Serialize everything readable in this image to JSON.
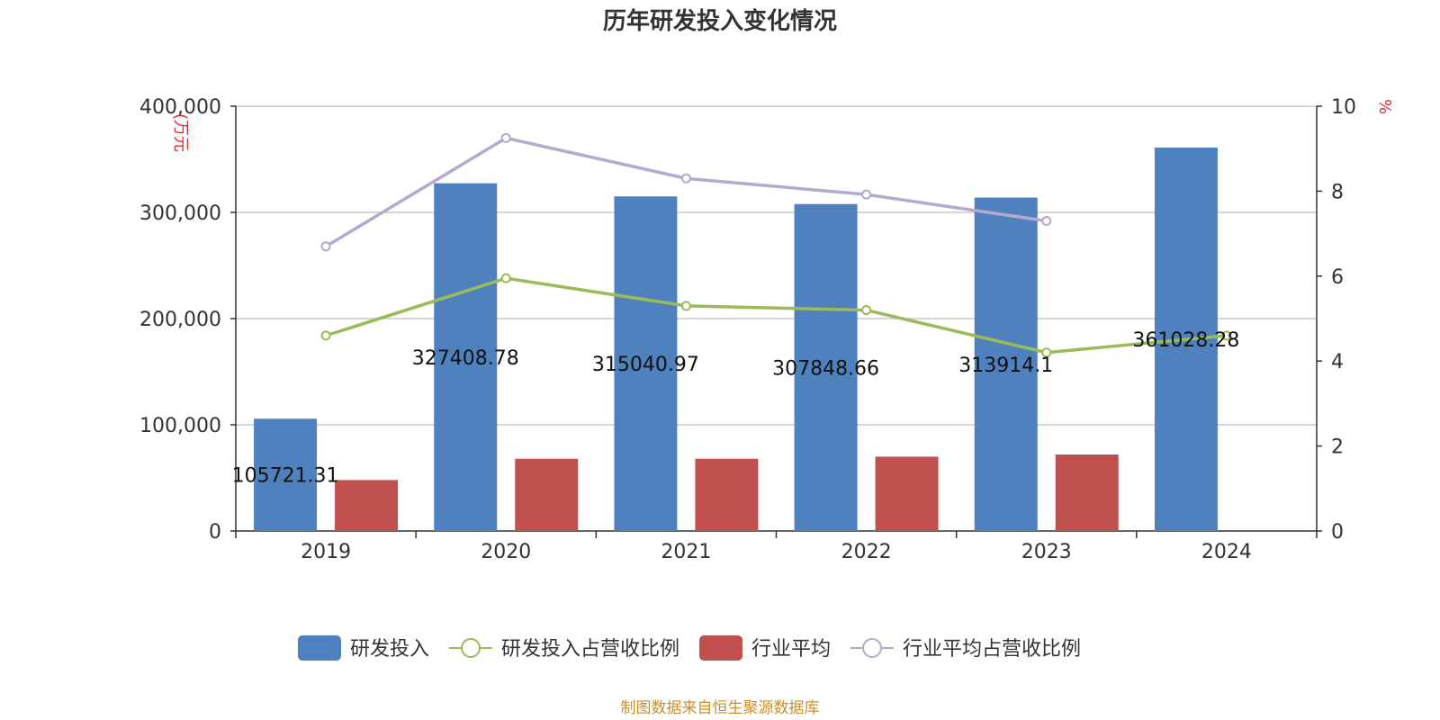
{
  "chart_data": {
    "type": "bar",
    "title": "历年研发投入变化情况",
    "categories": [
      "2019",
      "2020",
      "2021",
      "2022",
      "2023",
      "2024"
    ],
    "y_left": {
      "unit": "(万元",
      "ylim": [
        0,
        400000
      ],
      "ticks": [
        "0",
        "100,000",
        "200,000",
        "300,000",
        "400,000"
      ],
      "tick_values": [
        0,
        100000,
        200000,
        300000,
        400000
      ]
    },
    "y_right": {
      "unit": "%",
      "ylim": [
        0,
        10
      ],
      "ticks": [
        "0",
        "2",
        "4",
        "6",
        "8",
        "10"
      ],
      "tick_values": [
        0,
        2,
        4,
        6,
        8,
        10
      ]
    },
    "series": [
      {
        "name": "研发投入",
        "type": "bar",
        "axis": "left",
        "color": "#4e81bd",
        "values": [
          105721.31,
          327408.78,
          315040.97,
          307848.66,
          313914.1,
          361028.28
        ],
        "labels": [
          "105721.31",
          "327408.78",
          "315040.97",
          "307848.66",
          "313914.1",
          "361028.28"
        ]
      },
      {
        "name": "研发投入占营收比例",
        "type": "line",
        "axis": "right",
        "color": "#9bbb59",
        "values": [
          4.6,
          5.95,
          5.3,
          5.2,
          4.2,
          4.6
        ]
      },
      {
        "name": "行业平均",
        "type": "bar",
        "axis": "left",
        "color": "#c0504d",
        "values": [
          48000,
          68000,
          68000,
          70000,
          72000,
          null
        ]
      },
      {
        "name": "行业平均占营收比例",
        "type": "line",
        "axis": "right",
        "color": "#b7a8cf",
        "values": [
          6.7,
          9.25,
          8.3,
          7.92,
          7.3,
          null
        ]
      }
    ],
    "grid": true,
    "legend_position": "bottom"
  },
  "source": "制图数据来自恒生聚源数据库"
}
